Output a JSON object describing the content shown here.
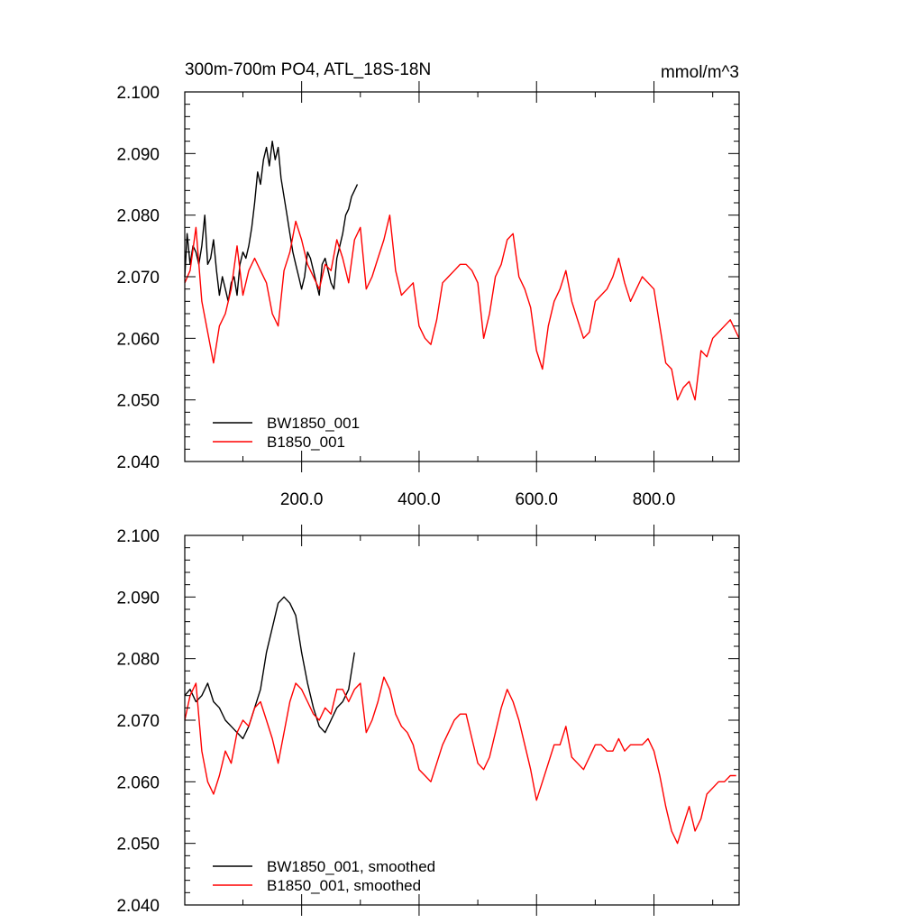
{
  "chart_data": [
    {
      "type": "line",
      "title": "300m-700m PO4, ATL_18S-18N",
      "units": "mmol/m^3",
      "xlim": [
        1,
        945
      ],
      "ylim": [
        2.04,
        2.1
      ],
      "y_ticks": [
        "2.040",
        "2.050",
        "2.060",
        "2.070",
        "2.080",
        "2.090",
        "2.100"
      ],
      "x_ticks": [
        "200.0",
        "400.0",
        "600.0",
        "800.0"
      ],
      "legend_position": "bottom-left",
      "series": [
        {
          "name": "BW1850_001",
          "color": "#000000",
          "x": [
            1,
            5,
            10,
            15,
            20,
            25,
            30,
            35,
            40,
            45,
            50,
            55,
            60,
            65,
            70,
            75,
            80,
            85,
            90,
            95,
            100,
            105,
            110,
            115,
            120,
            125,
            130,
            135,
            140,
            145,
            150,
            155,
            160,
            165,
            170,
            175,
            180,
            185,
            190,
            195,
            200,
            205,
            210,
            215,
            220,
            225,
            230,
            235,
            240,
            245,
            250,
            255,
            260,
            265,
            270,
            275,
            280,
            285,
            290,
            295
          ],
          "y": [
            2.07,
            2.077,
            2.072,
            2.075,
            2.074,
            2.072,
            2.075,
            2.08,
            2.072,
            2.073,
            2.076,
            2.071,
            2.067,
            2.07,
            2.068,
            2.066,
            2.069,
            2.07,
            2.067,
            2.072,
            2.074,
            2.073,
            2.075,
            2.078,
            2.082,
            2.087,
            2.085,
            2.089,
            2.091,
            2.088,
            2.092,
            2.089,
            2.091,
            2.086,
            2.083,
            2.08,
            2.077,
            2.074,
            2.072,
            2.07,
            2.068,
            2.07,
            2.074,
            2.073,
            2.071,
            2.069,
            2.067,
            2.072,
            2.073,
            2.071,
            2.069,
            2.068,
            2.073,
            2.075,
            2.077,
            2.08,
            2.081,
            2.083,
            2.084,
            2.085
          ]
        },
        {
          "name": "B1850_001",
          "color": "#ff0000",
          "x": [
            1,
            10,
            20,
            30,
            40,
            50,
            60,
            70,
            80,
            90,
            100,
            110,
            120,
            130,
            140,
            150,
            160,
            170,
            180,
            190,
            200,
            210,
            220,
            230,
            240,
            250,
            260,
            270,
            280,
            290,
            300,
            310,
            320,
            330,
            340,
            350,
            360,
            370,
            380,
            390,
            400,
            410,
            420,
            430,
            440,
            450,
            460,
            470,
            480,
            490,
            500,
            510,
            520,
            530,
            540,
            550,
            560,
            570,
            580,
            590,
            600,
            610,
            620,
            630,
            640,
            650,
            660,
            670,
            680,
            690,
            700,
            710,
            720,
            730,
            740,
            750,
            760,
            770,
            780,
            790,
            800,
            810,
            820,
            830,
            840,
            850,
            860,
            870,
            880,
            890,
            900,
            910,
            920,
            930,
            940,
            945
          ],
          "y": [
            2.069,
            2.071,
            2.078,
            2.066,
            2.061,
            2.056,
            2.062,
            2.064,
            2.068,
            2.075,
            2.067,
            2.071,
            2.073,
            2.071,
            2.069,
            2.064,
            2.062,
            2.071,
            2.074,
            2.079,
            2.076,
            2.072,
            2.07,
            2.068,
            2.072,
            2.071,
            2.076,
            2.073,
            2.069,
            2.076,
            2.078,
            2.068,
            2.07,
            2.073,
            2.076,
            2.08,
            2.071,
            2.067,
            2.068,
            2.069,
            2.062,
            2.06,
            2.059,
            2.063,
            2.069,
            2.07,
            2.071,
            2.072,
            2.072,
            2.071,
            2.069,
            2.06,
            2.064,
            2.07,
            2.072,
            2.076,
            2.077,
            2.07,
            2.068,
            2.065,
            2.058,
            2.055,
            2.062,
            2.066,
            2.068,
            2.071,
            2.066,
            2.063,
            2.06,
            2.061,
            2.066,
            2.067,
            2.068,
            2.07,
            2.073,
            2.069,
            2.066,
            2.068,
            2.07,
            2.069,
            2.068,
            2.062,
            2.056,
            2.055,
            2.05,
            2.052,
            2.053,
            2.05,
            2.058,
            2.057,
            2.06,
            2.061,
            2.062,
            2.063,
            2.061,
            2.06
          ]
        }
      ]
    },
    {
      "type": "line",
      "title": "",
      "xlim": [
        1,
        945
      ],
      "ylim": [
        2.04,
        2.1
      ],
      "y_ticks": [
        "2.040",
        "2.050",
        "2.060",
        "2.070",
        "2.080",
        "2.090",
        "2.100"
      ],
      "legend_position": "bottom-left",
      "series": [
        {
          "name": "BW1850_001, smoothed",
          "color": "#000000",
          "x": [
            1,
            10,
            20,
            30,
            40,
            50,
            60,
            70,
            80,
            90,
            100,
            110,
            120,
            130,
            140,
            150,
            160,
            170,
            180,
            190,
            200,
            210,
            220,
            230,
            240,
            250,
            260,
            270,
            280,
            290
          ],
          "y": [
            2.074,
            2.075,
            2.073,
            2.074,
            2.076,
            2.073,
            2.072,
            2.07,
            2.069,
            2.068,
            2.067,
            2.069,
            2.072,
            2.075,
            2.081,
            2.085,
            2.089,
            2.09,
            2.089,
            2.087,
            2.081,
            2.076,
            2.072,
            2.069,
            2.068,
            2.07,
            2.072,
            2.073,
            2.075,
            2.081
          ]
        },
        {
          "name": "B1850_001, smoothed",
          "color": "#ff0000",
          "x": [
            1,
            10,
            20,
            30,
            40,
            50,
            60,
            70,
            80,
            90,
            100,
            110,
            120,
            130,
            140,
            150,
            160,
            170,
            180,
            190,
            200,
            210,
            220,
            230,
            240,
            250,
            260,
            270,
            280,
            290,
            300,
            310,
            320,
            330,
            340,
            350,
            360,
            370,
            380,
            390,
            400,
            410,
            420,
            430,
            440,
            450,
            460,
            470,
            480,
            490,
            500,
            510,
            520,
            530,
            540,
            550,
            560,
            570,
            580,
            590,
            600,
            610,
            620,
            630,
            640,
            650,
            660,
            670,
            680,
            690,
            700,
            710,
            720,
            730,
            740,
            750,
            760,
            770,
            780,
            790,
            800,
            810,
            820,
            830,
            840,
            850,
            860,
            870,
            880,
            890,
            900,
            910,
            920,
            930,
            940
          ],
          "y": [
            2.07,
            2.074,
            2.076,
            2.065,
            2.06,
            2.058,
            2.061,
            2.065,
            2.063,
            2.068,
            2.07,
            2.069,
            2.072,
            2.073,
            2.07,
            2.067,
            2.063,
            2.068,
            2.073,
            2.076,
            2.075,
            2.073,
            2.071,
            2.07,
            2.072,
            2.071,
            2.075,
            2.075,
            2.073,
            2.075,
            2.076,
            2.068,
            2.07,
            2.073,
            2.077,
            2.075,
            2.071,
            2.069,
            2.068,
            2.066,
            2.062,
            2.061,
            2.06,
            2.063,
            2.066,
            2.068,
            2.07,
            2.071,
            2.071,
            2.067,
            2.063,
            2.062,
            2.064,
            2.068,
            2.072,
            2.075,
            2.073,
            2.07,
            2.066,
            2.062,
            2.057,
            2.06,
            2.063,
            2.066,
            2.066,
            2.069,
            2.064,
            2.063,
            2.062,
            2.064,
            2.066,
            2.066,
            2.065,
            2.065,
            2.067,
            2.065,
            2.066,
            2.066,
            2.066,
            2.067,
            2.065,
            2.061,
            2.056,
            2.052,
            2.05,
            2.053,
            2.056,
            2.052,
            2.054,
            2.058,
            2.059,
            2.06,
            2.06,
            2.061,
            2.061
          ]
        }
      ]
    }
  ]
}
